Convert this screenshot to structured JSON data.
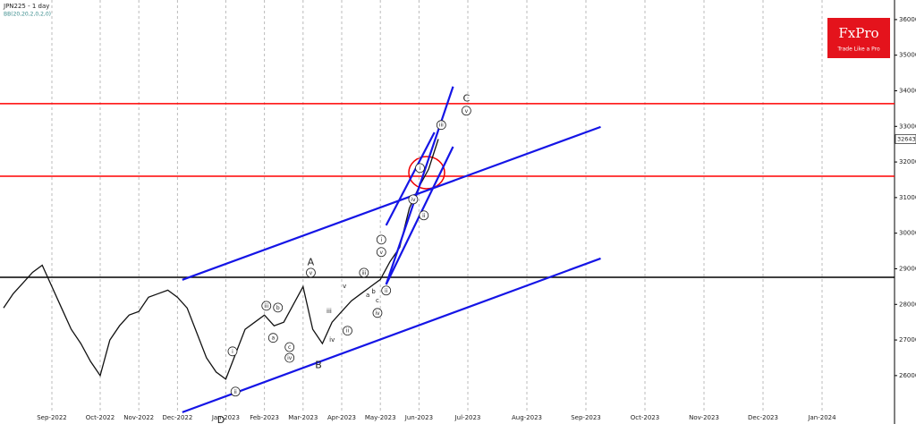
{
  "chart_data": {
    "type": "line",
    "title": "JPN225 - 1 day",
    "subtitle": "BB(20,20,2,0,2,0)",
    "categories": [
      null,
      null,
      null,
      null,
      null,
      "Sep-2022",
      null,
      null,
      null,
      null,
      "Oct-2022",
      null,
      null,
      null,
      "Nov-2022",
      null,
      null,
      null,
      "Dec-2022",
      null,
      null,
      null,
      null,
      "Jan-2023",
      null,
      null,
      null,
      "Feb-2023",
      null,
      null,
      null,
      "Mar-2023",
      null,
      null,
      null,
      "Apr-2023",
      null,
      null,
      null,
      "May-2023",
      null,
      null,
      null,
      "Jun-2023",
      null,
      null,
      null,
      "Jul-2023",
      null,
      null,
      null,
      "Aug-2023",
      null,
      null,
      null,
      "Sep-2023",
      null,
      null,
      null,
      "Oct-2023",
      null,
      null,
      null,
      "Nov-2023",
      null,
      null,
      null,
      "Dec-2023",
      null,
      null,
      null,
      "Jan-2024"
    ],
    "series": [
      {
        "name": "JPN225",
        "color": "#111111",
        "values": [
          27900,
          28300,
          28600,
          28900,
          29100,
          28500,
          27900,
          27300,
          26900,
          26400,
          26000,
          27000,
          27400,
          27700,
          27800,
          28200,
          28300,
          28400,
          28200,
          27900,
          27200,
          26500,
          26100,
          25900,
          26600,
          27300,
          27500,
          27700,
          27400,
          27500,
          28000,
          28500,
          27300,
          26900,
          27500,
          27800,
          28100,
          28300,
          28500,
          28700,
          29200,
          29600,
          30700,
          31300,
          31800,
          32643,
          null,
          null,
          null,
          null,
          null,
          null,
          null,
          null,
          null,
          null,
          null,
          null,
          null,
          null,
          null,
          null,
          null,
          null,
          null,
          null,
          null,
          null,
          null,
          null,
          null,
          null
        ]
      }
    ],
    "ylim": [
      24640,
      36550
    ],
    "yticks": [
      26000,
      27000,
      28000,
      29000,
      30000,
      31000,
      32000,
      33000,
      34000,
      35000,
      36000
    ],
    "grid": true,
    "levels": [
      {
        "value": 33640,
        "color": "#ff0000"
      },
      {
        "value": 31600,
        "color": "#ff0000"
      },
      {
        "value": 28760,
        "color": "#000000"
      }
    ],
    "trendlines": [
      {
        "color": "#1515e6",
        "points": [
          [
            18.5,
            24970
          ],
          [
            56,
            29290
          ]
        ]
      },
      {
        "color": "#1515e6",
        "points": [
          [
            18.5,
            28690
          ],
          [
            56,
            32985
          ]
        ]
      },
      {
        "color": "#1515e6",
        "points": [
          [
            39.6,
            28560
          ],
          [
            46,
            34120
          ]
        ]
      },
      {
        "color": "#1515e6",
        "points": [
          [
            39.6,
            28560
          ],
          [
            46,
            32430
          ]
        ]
      },
      {
        "color": "#1515e6",
        "points": [
          [
            39.6,
            30220
          ],
          [
            44.6,
            32830
          ]
        ]
      }
    ],
    "annotations": [
      {
        "text": "A",
        "x": 31.8,
        "y": 29190,
        "circled": false
      },
      {
        "text": "B",
        "x": 32.6,
        "y": 26300,
        "circled": false
      },
      {
        "text": "C",
        "x": 46.9,
        "y": 33790,
        "circled": false
      },
      {
        "text": "D",
        "x": 22.5,
        "y": 24750,
        "circled": false
      },
      {
        "text": "v",
        "x": 31.8,
        "y": 28890,
        "circled": true
      },
      {
        "text": "v",
        "x": 46.9,
        "y": 33440,
        "circled": true
      },
      {
        "text": "iii",
        "x": 45.2,
        "y": 33040,
        "circled": true
      },
      {
        "text": "i",
        "x": 43.1,
        "y": 31830,
        "circled": true
      },
      {
        "text": "ii",
        "x": 43.5,
        "y": 30500,
        "circled": true
      },
      {
        "text": "iv",
        "x": 42.4,
        "y": 30950,
        "circled": true
      },
      {
        "text": "i",
        "x": 39.1,
        "y": 29820,
        "circled": true
      },
      {
        "text": "v",
        "x": 39.1,
        "y": 29470,
        "circled": true
      },
      {
        "text": "iii",
        "x": 37.3,
        "y": 28890,
        "circled": true
      },
      {
        "text": "ii",
        "x": 39.6,
        "y": 28390,
        "circled": true
      },
      {
        "text": "iv",
        "x": 38.7,
        "y": 27760,
        "circled": true
      },
      {
        "text": "ii",
        "x": 35.6,
        "y": 27260,
        "circled": true
      },
      {
        "text": "iii",
        "x": 27.2,
        "y": 27960,
        "circled": true
      },
      {
        "text": "b",
        "x": 28.4,
        "y": 27910,
        "circled": true
      },
      {
        "text": "a",
        "x": 27.9,
        "y": 27060,
        "circled": true
      },
      {
        "text": "c",
        "x": 29.6,
        "y": 26800,
        "circled": true
      },
      {
        "text": "iv",
        "x": 29.6,
        "y": 26500,
        "circled": true
      },
      {
        "text": "i",
        "x": 23.7,
        "y": 26680,
        "circled": true
      },
      {
        "text": "ii",
        "x": 24,
        "y": 25550,
        "circled": true
      },
      {
        "text": "iv",
        "x": 34,
        "y": 27020,
        "circled": false
      },
      {
        "text": "iii",
        "x": 33.7,
        "y": 27820,
        "circled": false
      },
      {
        "text": "v",
        "x": 35.3,
        "y": 28520,
        "circled": false
      },
      {
        "text": "a",
        "x": 37.7,
        "y": 28270,
        "circled": false
      },
      {
        "text": "b",
        "x": 38.3,
        "y": 28370,
        "circled": false
      },
      {
        "text": "c",
        "x": 38.7,
        "y": 28120,
        "circled": false
      }
    ]
  },
  "logo": {
    "name": "FxPro",
    "tagline": "Trade Like a Pro"
  }
}
